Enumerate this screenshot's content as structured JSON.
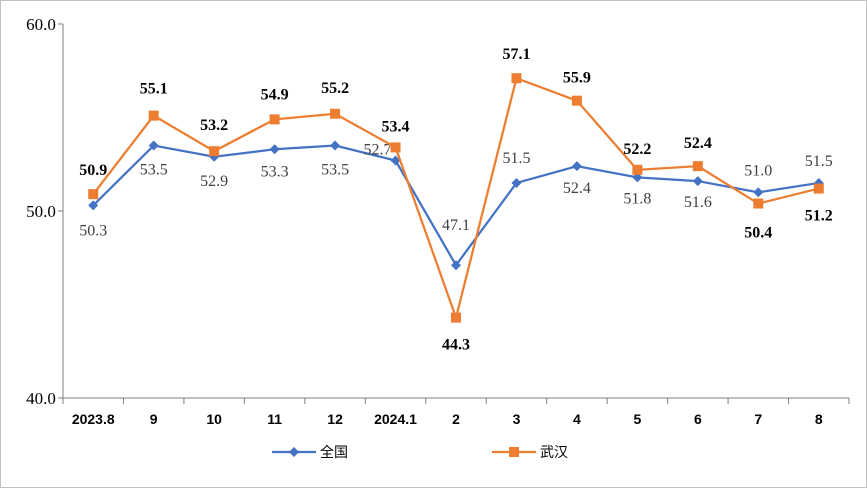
{
  "chart_data": {
    "type": "line",
    "categories": [
      "2023.8",
      "9",
      "10",
      "11",
      "12",
      "2024.1",
      "2",
      "3",
      "4",
      "5",
      "6",
      "7",
      "8"
    ],
    "ylim": [
      40.0,
      60.0
    ],
    "yticks": [
      "40.0",
      "50.0",
      "60.0"
    ],
    "grid": false,
    "legend_position": "bottom",
    "series": [
      {
        "name": "全国",
        "color": "#4472C4",
        "marker": "diamond",
        "values": [
          50.3,
          53.5,
          52.9,
          53.3,
          53.5,
          52.7,
          47.1,
          51.5,
          52.4,
          51.8,
          51.6,
          51.0,
          51.5
        ],
        "labels": [
          "50.3",
          "53.5",
          "52.9",
          "53.3",
          "53.5",
          "52.7",
          "47.1",
          "51.5",
          "52.4",
          "51.8",
          "51.6",
          "51.0",
          "51.5"
        ]
      },
      {
        "name": "武汉",
        "color": "#ED7D31",
        "marker": "square",
        "values": [
          50.9,
          55.1,
          53.2,
          54.9,
          55.2,
          53.4,
          44.3,
          57.1,
          55.9,
          52.2,
          52.4,
          50.4,
          51.2
        ],
        "labels": [
          "50.9",
          "55.1",
          "53.2",
          "54.9",
          "55.2",
          "53.4",
          "44.3",
          "57.1",
          "55.9",
          "52.2",
          "52.4",
          "50.4",
          "51.2"
        ]
      }
    ]
  }
}
